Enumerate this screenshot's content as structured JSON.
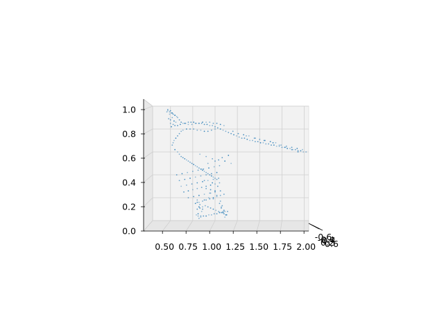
{
  "chart_data": {
    "type": "scatter",
    "projection": "3d",
    "title": "",
    "xlabel": "",
    "ylabel": "",
    "zlabel": "",
    "xlim": [
      0.3,
      2.05
    ],
    "zlim": [
      0.0,
      1.0
    ],
    "ylim_depth": [
      -0.6,
      0.6
    ],
    "x_ticks": [
      "0.50",
      "0.75",
      "1.00",
      "1.25",
      "1.50",
      "1.75",
      "2.00"
    ],
    "z_ticks": [
      "0.0",
      "0.2",
      "0.4",
      "0.6",
      "0.8",
      "1.0"
    ],
    "y_ticks": [
      "-0.6",
      "-0.4",
      "0.2",
      "0.4",
      "0.6"
    ],
    "grid": true,
    "marker_color": "#1f77b4",
    "series": [
      {
        "x": [
          0.47,
          0.49,
          0.51,
          0.53,
          0.55,
          0.57,
          0.52,
          0.48,
          0.5,
          0.54,
          0.56,
          0.5,
          0.53,
          0.55,
          0.51,
          0.49,
          0.46,
          0.47,
          0.5,
          0.52,
          0.55,
          0.58,
          0.6,
          0.62,
          0.66,
          0.7,
          0.74,
          0.78,
          0.82,
          0.86,
          0.9,
          0.94,
          0.98,
          1.02,
          1.06,
          1.1,
          1.0,
          0.96,
          0.92,
          0.88,
          0.84,
          0.8,
          0.76,
          0.72,
          0.68,
          0.64,
          0.62,
          0.6,
          0.58,
          0.56,
          0.54,
          0.53,
          0.52,
          0.58,
          0.61,
          0.64,
          0.67,
          0.7,
          0.73,
          0.76,
          0.79,
          0.82,
          0.85,
          0.88,
          0.91,
          0.94,
          0.97,
          1.0,
          1.03,
          1.06,
          1.09,
          1.12,
          1.15,
          1.18,
          1.21,
          1.24,
          1.27,
          1.3,
          1.33,
          1.36,
          1.39,
          1.42,
          1.45,
          1.48,
          1.51,
          1.54,
          1.57,
          1.6,
          1.63,
          1.66,
          1.69,
          1.72,
          1.75,
          1.78,
          1.81,
          1.84,
          1.87,
          1.9,
          1.93,
          1.96,
          1.99,
          2.02,
          1.2,
          1.26,
          1.32,
          1.38,
          1.44,
          1.5,
          1.56,
          1.62,
          1.68,
          1.74,
          1.8,
          1.86,
          1.92,
          1.98,
          1.35,
          1.45,
          1.55,
          1.65,
          1.72,
          1.79,
          1.86,
          1.93,
          0.55,
          0.58,
          0.6,
          0.62,
          0.64,
          0.66,
          0.68,
          0.7,
          0.72,
          0.74,
          0.76,
          0.78,
          0.8,
          0.82,
          0.84,
          0.86,
          0.88,
          0.9,
          0.92,
          0.94,
          0.96,
          0.98,
          1.0,
          1.02,
          0.57,
          0.63,
          0.69,
          0.75,
          0.81,
          0.87,
          0.93,
          0.99,
          1.05,
          0.6,
          0.66,
          0.72,
          0.78,
          0.84,
          0.9,
          0.96,
          1.02,
          0.62,
          0.68,
          0.74,
          0.8,
          0.86,
          0.92,
          0.98,
          1.04,
          0.65,
          0.7,
          0.75,
          0.8,
          0.85,
          0.9,
          0.95,
          1.0,
          1.05,
          0.7,
          0.76,
          0.82,
          0.88,
          0.94,
          1.0,
          1.06,
          0.78,
          0.82,
          0.86,
          0.9,
          0.94,
          0.98,
          1.02,
          1.06,
          1.1,
          0.8,
          0.83,
          0.86,
          0.89,
          0.92,
          0.95,
          0.98,
          1.01,
          1.04,
          1.07,
          1.1,
          1.13,
          0.79,
          0.81,
          0.84,
          0.87,
          0.9,
          0.93,
          0.96,
          0.99,
          1.02,
          1.05,
          1.08,
          1.11,
          1.14,
          0.8,
          0.82,
          0.85,
          0.8,
          0.83,
          0.86,
          0.81,
          0.84,
          0.82,
          1.05,
          1.07,
          1.09,
          1.11,
          1.06,
          1.08,
          1.1,
          1.12,
          1.07,
          1.09,
          0.9,
          0.95,
          1.0,
          0.93,
          0.98,
          0.88,
          1.03,
          0.97,
          0.85,
          0.92,
          1.0,
          1.08,
          1.15,
          0.83,
          0.9,
          0.97,
          1.04,
          1.11,
          1.18,
          0.95,
          1.02,
          0.88
        ],
        "z": [
          0.96,
          0.95,
          0.94,
          0.93,
          0.92,
          0.91,
          0.9,
          0.89,
          0.88,
          0.87,
          0.86,
          0.85,
          0.84,
          0.83,
          0.82,
          0.93,
          0.95,
          0.97,
          0.96,
          0.94,
          0.92,
          0.9,
          0.88,
          0.86,
          0.85,
          0.84,
          0.84,
          0.85,
          0.85,
          0.86,
          0.86,
          0.86,
          0.85,
          0.85,
          0.84,
          0.83,
          0.8,
          0.79,
          0.78,
          0.78,
          0.79,
          0.79,
          0.8,
          0.8,
          0.8,
          0.79,
          0.78,
          0.76,
          0.74,
          0.72,
          0.7,
          0.68,
          0.66,
          0.83,
          0.84,
          0.85,
          0.85,
          0.86,
          0.86,
          0.86,
          0.85,
          0.85,
          0.85,
          0.84,
          0.84,
          0.83,
          0.83,
          0.82,
          0.81,
          0.8,
          0.79,
          0.78,
          0.77,
          0.76,
          0.75,
          0.74,
          0.73,
          0.72,
          0.72,
          0.71,
          0.7,
          0.7,
          0.69,
          0.69,
          0.68,
          0.68,
          0.67,
          0.67,
          0.66,
          0.66,
          0.65,
          0.65,
          0.64,
          0.64,
          0.63,
          0.63,
          0.62,
          0.62,
          0.61,
          0.61,
          0.6,
          0.6,
          0.78,
          0.76,
          0.75,
          0.74,
          0.72,
          0.71,
          0.7,
          0.69,
          0.68,
          0.66,
          0.65,
          0.64,
          0.63,
          0.62,
          0.74,
          0.72,
          0.7,
          0.68,
          0.66,
          0.64,
          0.62,
          0.6,
          0.62,
          0.6,
          0.58,
          0.56,
          0.55,
          0.54,
          0.53,
          0.52,
          0.51,
          0.5,
          0.49,
          0.48,
          0.47,
          0.46,
          0.45,
          0.44,
          0.43,
          0.42,
          0.41,
          0.4,
          0.39,
          0.38,
          0.37,
          0.36,
          0.4,
          0.41,
          0.42,
          0.43,
          0.44,
          0.45,
          0.46,
          0.47,
          0.48,
          0.35,
          0.36,
          0.37,
          0.38,
          0.39,
          0.4,
          0.41,
          0.42,
          0.3,
          0.31,
          0.32,
          0.33,
          0.34,
          0.35,
          0.36,
          0.37,
          0.25,
          0.26,
          0.27,
          0.28,
          0.29,
          0.3,
          0.31,
          0.32,
          0.33,
          0.2,
          0.21,
          0.22,
          0.23,
          0.24,
          0.25,
          0.26,
          0.15,
          0.16,
          0.17,
          0.18,
          0.19,
          0.2,
          0.21,
          0.22,
          0.23,
          0.1,
          0.11,
          0.12,
          0.13,
          0.12,
          0.11,
          0.1,
          0.09,
          0.08,
          0.07,
          0.06,
          0.05,
          0.05,
          0.04,
          0.04,
          0.04,
          0.04,
          0.05,
          0.05,
          0.06,
          0.06,
          0.07,
          0.07,
          0.08,
          0.08,
          0.16,
          0.12,
          0.08,
          0.18,
          0.14,
          0.1,
          0.06,
          0.03,
          0.02,
          0.15,
          0.11,
          0.07,
          0.03,
          0.17,
          0.13,
          0.09,
          0.05,
          0.12,
          0.08,
          0.28,
          0.27,
          0.26,
          0.2,
          0.19,
          0.35,
          0.3,
          0.33,
          0.45,
          0.5,
          0.52,
          0.55,
          0.57,
          0.58,
          0.56,
          0.54,
          0.53,
          0.52,
          0.5,
          0.24,
          0.22,
          0.18
        ]
      }
    ]
  }
}
